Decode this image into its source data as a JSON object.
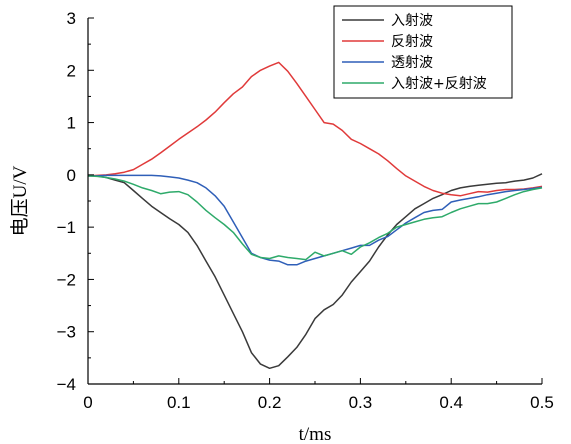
{
  "chart_data": {
    "type": "line",
    "xlabel": "t/ms",
    "ylabel": "电压U/V",
    "xlim": [
      0,
      0.5
    ],
    "ylim": [
      -4,
      3
    ],
    "xticks": [
      0,
      0.1,
      0.2,
      0.3,
      0.4,
      0.5
    ],
    "xtick_labels": [
      "0",
      "0.1",
      "0.2",
      "0.3",
      "0.4",
      "0.5"
    ],
    "yticks": [
      3,
      2,
      1,
      0,
      -1,
      -2,
      -3,
      -4
    ],
    "ytick_labels": [
      "3",
      "2",
      "1",
      "0",
      "−1",
      "−2",
      "−3",
      "−4"
    ],
    "grid": false,
    "legend_position": "top-right",
    "series": [
      {
        "name": "入射波",
        "color": "#3a3a3a",
        "x": [
          0,
          0.01,
          0.02,
          0.03,
          0.04,
          0.05,
          0.06,
          0.07,
          0.08,
          0.09,
          0.1,
          0.11,
          0.12,
          0.13,
          0.14,
          0.15,
          0.16,
          0.17,
          0.18,
          0.19,
          0.2,
          0.21,
          0.22,
          0.23,
          0.24,
          0.25,
          0.26,
          0.27,
          0.28,
          0.29,
          0.3,
          0.31,
          0.32,
          0.33,
          0.34,
          0.35,
          0.36,
          0.37,
          0.38,
          0.39,
          0.4,
          0.41,
          0.42,
          0.43,
          0.44,
          0.45,
          0.46,
          0.47,
          0.48,
          0.49,
          0.5
        ],
        "y": [
          -0.02,
          -0.02,
          -0.05,
          -0.1,
          -0.15,
          -0.3,
          -0.45,
          -0.6,
          -0.72,
          -0.84,
          -0.95,
          -1.1,
          -1.35,
          -1.65,
          -1.95,
          -2.3,
          -2.65,
          -3.0,
          -3.4,
          -3.62,
          -3.7,
          -3.65,
          -3.48,
          -3.3,
          -3.05,
          -2.75,
          -2.58,
          -2.48,
          -2.3,
          -2.05,
          -1.85,
          -1.65,
          -1.38,
          -1.15,
          -0.95,
          -0.8,
          -0.65,
          -0.55,
          -0.45,
          -0.38,
          -0.3,
          -0.25,
          -0.22,
          -0.2,
          -0.18,
          -0.16,
          -0.15,
          -0.12,
          -0.1,
          -0.06,
          0.02
        ]
      },
      {
        "name": "反射波",
        "color": "#e03a3a",
        "x": [
          0,
          0.01,
          0.02,
          0.03,
          0.04,
          0.05,
          0.06,
          0.07,
          0.08,
          0.09,
          0.1,
          0.11,
          0.12,
          0.13,
          0.14,
          0.15,
          0.16,
          0.17,
          0.18,
          0.19,
          0.2,
          0.21,
          0.22,
          0.23,
          0.24,
          0.25,
          0.26,
          0.27,
          0.28,
          0.29,
          0.3,
          0.31,
          0.32,
          0.33,
          0.34,
          0.35,
          0.36,
          0.37,
          0.38,
          0.39,
          0.4,
          0.41,
          0.42,
          0.43,
          0.44,
          0.45,
          0.46,
          0.47,
          0.48,
          0.49,
          0.5
        ],
        "y": [
          -0.02,
          -0.01,
          0.0,
          0.02,
          0.05,
          0.1,
          0.2,
          0.3,
          0.42,
          0.55,
          0.68,
          0.8,
          0.92,
          1.05,
          1.2,
          1.38,
          1.55,
          1.68,
          1.88,
          2.0,
          2.08,
          2.15,
          1.98,
          1.75,
          1.5,
          1.25,
          1.0,
          0.97,
          0.85,
          0.68,
          0.6,
          0.5,
          0.4,
          0.27,
          0.12,
          -0.02,
          -0.12,
          -0.22,
          -0.3,
          -0.35,
          -0.38,
          -0.4,
          -0.36,
          -0.32,
          -0.33,
          -0.3,
          -0.28,
          -0.28,
          -0.27,
          -0.25,
          -0.22
        ]
      },
      {
        "name": "透射波",
        "color": "#2f5fb8",
        "x": [
          0,
          0.01,
          0.02,
          0.03,
          0.04,
          0.05,
          0.06,
          0.07,
          0.08,
          0.09,
          0.1,
          0.11,
          0.12,
          0.13,
          0.14,
          0.15,
          0.16,
          0.17,
          0.18,
          0.19,
          0.2,
          0.21,
          0.22,
          0.23,
          0.24,
          0.25,
          0.26,
          0.27,
          0.28,
          0.29,
          0.3,
          0.31,
          0.32,
          0.33,
          0.34,
          0.35,
          0.36,
          0.37,
          0.38,
          0.39,
          0.4,
          0.41,
          0.42,
          0.43,
          0.44,
          0.45,
          0.46,
          0.47,
          0.48,
          0.49,
          0.5
        ],
        "y": [
          -0.02,
          -0.02,
          -0.01,
          -0.01,
          -0.01,
          -0.01,
          -0.01,
          -0.01,
          -0.02,
          -0.04,
          -0.06,
          -0.1,
          -0.15,
          -0.25,
          -0.4,
          -0.6,
          -0.9,
          -1.2,
          -1.5,
          -1.58,
          -1.63,
          -1.65,
          -1.72,
          -1.72,
          -1.65,
          -1.6,
          -1.55,
          -1.5,
          -1.45,
          -1.4,
          -1.35,
          -1.35,
          -1.25,
          -1.18,
          -1.05,
          -0.92,
          -0.82,
          -0.72,
          -0.68,
          -0.66,
          -0.52,
          -0.48,
          -0.45,
          -0.42,
          -0.38,
          -0.35,
          -0.32,
          -0.3,
          -0.28,
          -0.26,
          -0.24
        ]
      },
      {
        "name": "入射波+反射波",
        "color": "#2eaa6a",
        "x": [
          0,
          0.01,
          0.02,
          0.03,
          0.04,
          0.05,
          0.06,
          0.07,
          0.08,
          0.09,
          0.1,
          0.11,
          0.12,
          0.13,
          0.14,
          0.15,
          0.16,
          0.17,
          0.18,
          0.19,
          0.2,
          0.21,
          0.22,
          0.23,
          0.24,
          0.25,
          0.26,
          0.27,
          0.28,
          0.29,
          0.3,
          0.31,
          0.32,
          0.33,
          0.34,
          0.35,
          0.36,
          0.37,
          0.38,
          0.39,
          0.4,
          0.41,
          0.42,
          0.43,
          0.44,
          0.45,
          0.46,
          0.47,
          0.48,
          0.49,
          0.5
        ],
        "y": [
          -0.02,
          -0.03,
          -0.05,
          -0.08,
          -0.12,
          -0.18,
          -0.25,
          -0.3,
          -0.36,
          -0.33,
          -0.32,
          -0.38,
          -0.52,
          -0.68,
          -0.82,
          -0.95,
          -1.1,
          -1.32,
          -1.52,
          -1.58,
          -1.6,
          -1.55,
          -1.58,
          -1.6,
          -1.62,
          -1.48,
          -1.55,
          -1.5,
          -1.45,
          -1.52,
          -1.38,
          -1.3,
          -1.2,
          -1.12,
          -1.0,
          -0.95,
          -0.9,
          -0.85,
          -0.82,
          -0.8,
          -0.72,
          -0.65,
          -0.6,
          -0.55,
          -0.55,
          -0.52,
          -0.45,
          -0.38,
          -0.32,
          -0.28,
          -0.25
        ]
      }
    ]
  }
}
